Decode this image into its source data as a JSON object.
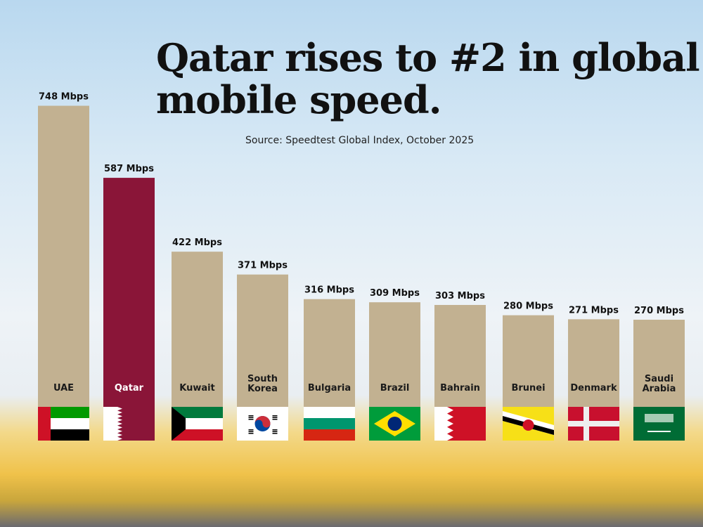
{
  "chart_data": {
    "type": "bar",
    "title": "Qatar rises to #2 in global mobile speed.",
    "subtitle": "Source: Speedtest Global Index, October 2025",
    "categories": [
      "UAE",
      "Qatar",
      "Kuwait",
      "South Korea",
      "Bulgaria",
      "Brazil",
      "Bahrain",
      "Brunei",
      "Denmark",
      "Saudi Arabia"
    ],
    "values": [
      748,
      587,
      422,
      371,
      316,
      309,
      303,
      280,
      271,
      270
    ],
    "unit": "Mbps",
    "value_labels": [
      "748 Mbps",
      "587 Mbps",
      "422 Mbps",
      "371 Mbps",
      "316 Mbps",
      "309 Mbps",
      "303 Mbps",
      "280 Mbps",
      "271 Mbps",
      "270 Mbps"
    ],
    "bar_color": "#c2b191",
    "highlight_color": "#8a1538",
    "highlight_category": "Qatar",
    "flags": [
      "uae-flag",
      "qatar-flag",
      "kuwait-flag",
      "south-korea-flag",
      "bulgaria-flag",
      "brazil-flag",
      "bahrain-flag",
      "brunei-flag",
      "denmark-flag",
      "saudi-arabia-flag"
    ],
    "grid": false
  }
}
